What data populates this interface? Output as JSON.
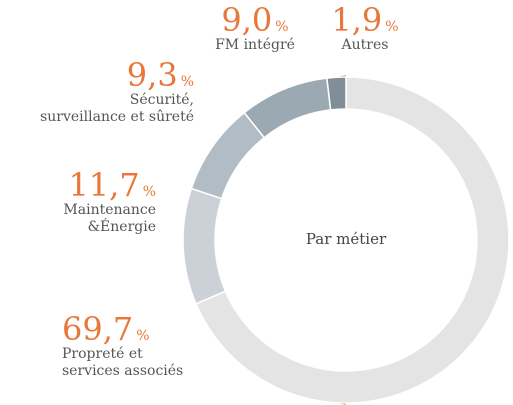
{
  "chart_data": {
    "type": "donut",
    "center_label": "Par métier",
    "unit": "%",
    "categories": [
      "Propreté et\nservices associés",
      "Maintenance\n&Énergie",
      "Sécurité,\nsurveillance et sûreté",
      "FM intégré",
      "Autres"
    ],
    "values": [
      69.7,
      11.7,
      9.3,
      9.0,
      1.9
    ],
    "value_labels": [
      "69,7",
      "11,7",
      "9,3",
      "9,0",
      "1,9"
    ],
    "colors": [
      "#e4e4e4",
      "#cbd1d6",
      "#b1bcc4",
      "#9ba9b2",
      "#7f8e98"
    ]
  }
}
